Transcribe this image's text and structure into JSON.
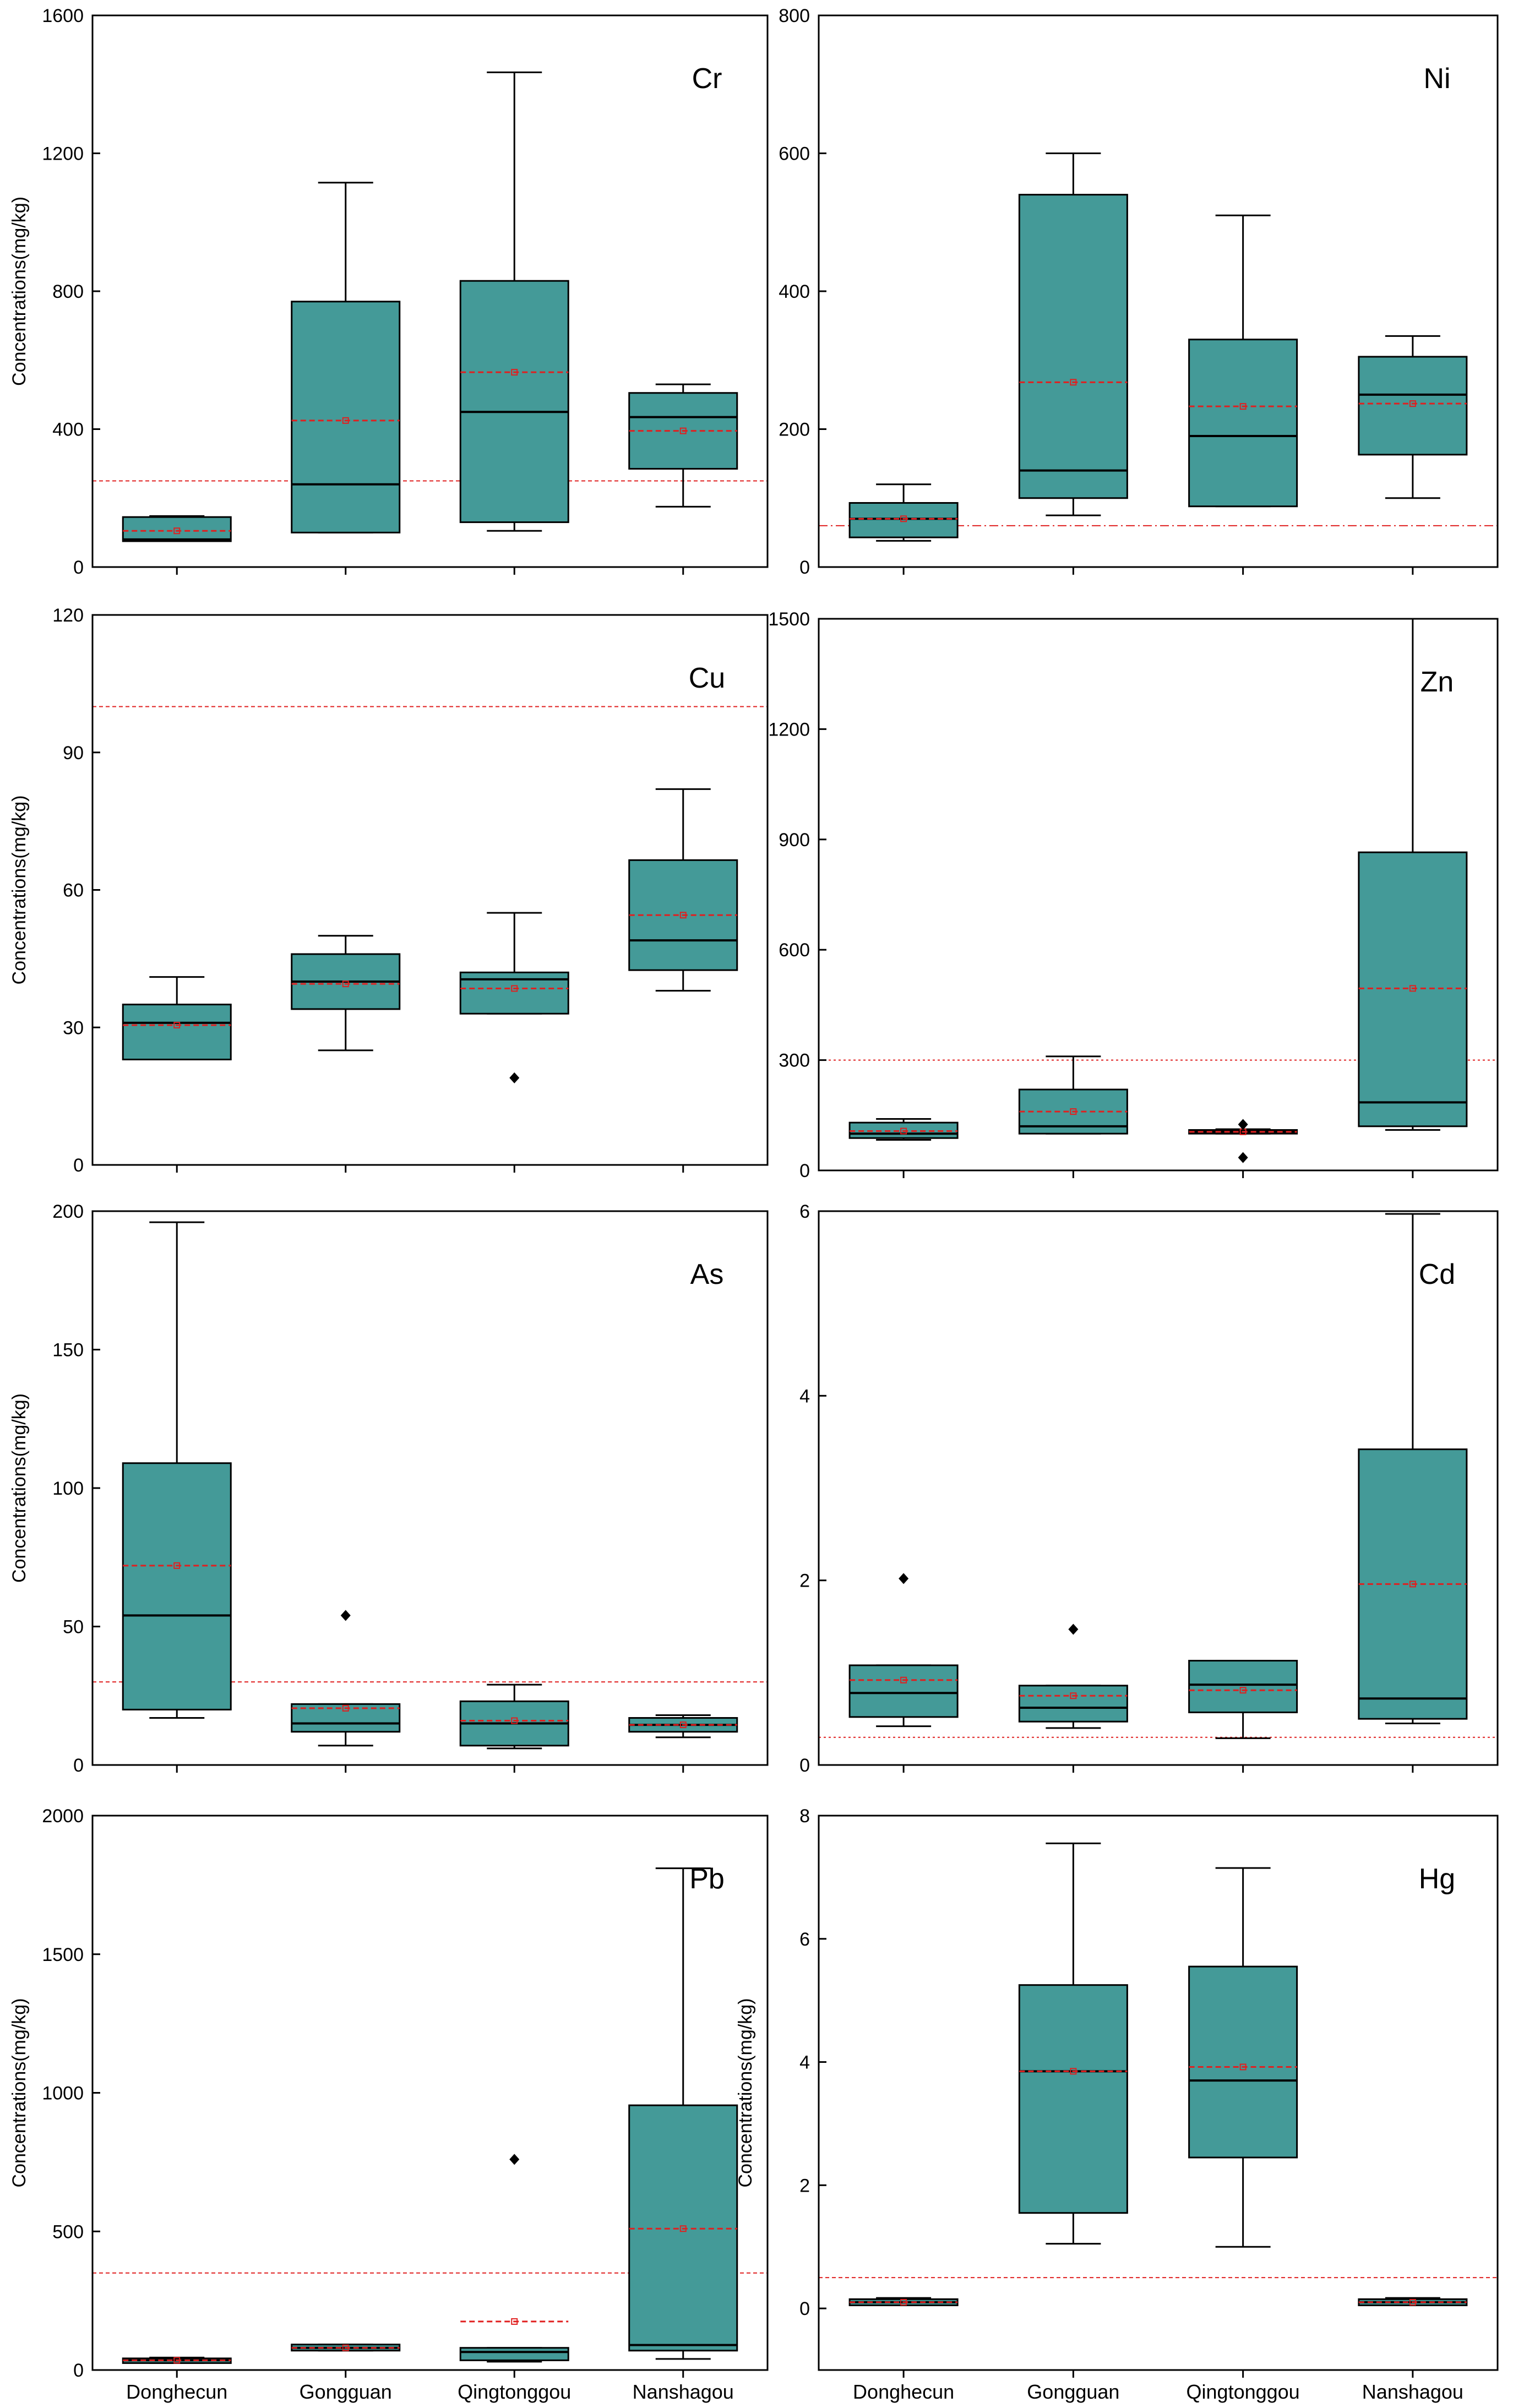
{
  "colors": {
    "box_fill": "#449A98",
    "box_edge": "#000000",
    "mean_line": "#E02020",
    "guideline": "#E02020",
    "axis": "#000000"
  },
  "chart_data": [
    {
      "type": "box",
      "label": "Cr",
      "ylabel": "Concentrations(mg/kg)",
      "ylim": [
        0,
        1600
      ],
      "yticks": [
        0,
        400,
        800,
        1200,
        1600
      ],
      "yticklabels": [
        "0",
        "400",
        "800",
        "1200",
        "1600"
      ],
      "categories": [],
      "guideline": 250,
      "guideline_style": "dashed",
      "boxes": [
        {
          "category": "Donghecun",
          "min": 75,
          "q1": 75,
          "median": 80,
          "q3": 145,
          "max": 148,
          "mean": 105,
          "outliers": []
        },
        {
          "category": "Gongguan",
          "min": 100,
          "q1": 100,
          "median": 240,
          "q3": 770,
          "max": 1115,
          "mean": 425,
          "outliers": []
        },
        {
          "category": "Qingtonggou",
          "min": 105,
          "q1": 130,
          "median": 450,
          "q3": 830,
          "max": 1435,
          "mean": 565,
          "outliers": []
        },
        {
          "category": "Nanshagou",
          "min": 175,
          "q1": 285,
          "median": 435,
          "q3": 505,
          "max": 530,
          "mean": 395,
          "outliers": []
        }
      ]
    },
    {
      "type": "box",
      "label": "Ni",
      "ylabel": "",
      "ylim": [
        0,
        800
      ],
      "yticks": [
        0,
        200,
        400,
        600,
        800
      ],
      "yticklabels": [
        "0",
        "200",
        "400",
        "600",
        "800"
      ],
      "categories": [],
      "guideline": 60,
      "guideline_style": "dashdot",
      "boxes": [
        {
          "category": "Donghecun",
          "min": 38,
          "q1": 43,
          "median": 70,
          "q3": 93,
          "max": 120,
          "mean": 70,
          "outliers": []
        },
        {
          "category": "Gongguan",
          "min": 75,
          "q1": 100,
          "median": 140,
          "q3": 540,
          "max": 600,
          "mean": 268,
          "outliers": []
        },
        {
          "category": "Qingtonggou",
          "min": 88,
          "q1": 88,
          "median": 190,
          "q3": 330,
          "max": 510,
          "mean": 233,
          "outliers": []
        },
        {
          "category": "Nanshagou",
          "min": 100,
          "q1": 163,
          "median": 250,
          "q3": 305,
          "max": 335,
          "mean": 237,
          "outliers": []
        }
      ]
    },
    {
      "type": "box",
      "label": "Cu",
      "ylabel": "Concentrations(mg/kg)",
      "ylim": [
        0,
        120
      ],
      "yticks": [
        0,
        30,
        60,
        90,
        120
      ],
      "yticklabels": [
        "0",
        "30",
        "60",
        "90",
        "120"
      ],
      "categories": [],
      "guideline": 100,
      "guideline_style": "dashed",
      "boxes": [
        {
          "category": "Donghecun",
          "min": 23,
          "q1": 23,
          "median": 31,
          "q3": 35,
          "max": 41,
          "mean": 30.5,
          "outliers": []
        },
        {
          "category": "Gongguan",
          "min": 25,
          "q1": 34,
          "median": 40,
          "q3": 46,
          "max": 50,
          "mean": 39.5,
          "outliers": []
        },
        {
          "category": "Qingtonggou",
          "min": 33,
          "q1": 33,
          "median": 40.5,
          "q3": 42,
          "max": 55,
          "mean": 38.5,
          "outliers": [
            19
          ]
        },
        {
          "category": "Nanshagou",
          "min": 38,
          "q1": 42.5,
          "median": 49,
          "q3": 66.5,
          "max": 82,
          "mean": 54.5,
          "outliers": []
        }
      ]
    },
    {
      "type": "box",
      "label": "Zn",
      "ylabel": "",
      "ylim": [
        0,
        1500
      ],
      "yticks": [
        0,
        300,
        600,
        900,
        1200,
        1500
      ],
      "yticklabels": [
        "0",
        "300",
        "600",
        "900",
        "1200",
        "1500"
      ],
      "categories": [],
      "guideline": 300,
      "guideline_style": "dotted",
      "boxes": [
        {
          "category": "Donghecun",
          "min": 83,
          "q1": 88,
          "median": 100,
          "q3": 130,
          "max": 140,
          "mean": 107,
          "outliers": []
        },
        {
          "category": "Gongguan",
          "min": 100,
          "q1": 100,
          "median": 120,
          "q3": 220,
          "max": 310,
          "mean": 160,
          "outliers": []
        },
        {
          "category": "Qingtonggou",
          "min": 100,
          "q1": 100,
          "median": 105,
          "q3": 110,
          "max": 112,
          "mean": 105,
          "outliers": [
            125,
            35
          ]
        },
        {
          "category": "Nanshagou",
          "min": 110,
          "q1": 120,
          "median": 185,
          "q3": 865,
          "max": 1500,
          "mean": 495,
          "outliers": []
        }
      ]
    },
    {
      "type": "box",
      "label": "As",
      "ylabel": "Concentrations(mg/kg)",
      "ylim": [
        0,
        200
      ],
      "yticks": [
        0,
        50,
        100,
        150,
        200
      ],
      "yticklabels": [
        "0",
        "50",
        "100",
        "150",
        "200"
      ],
      "categories": [],
      "guideline": 30,
      "guideline_style": "dashed",
      "boxes": [
        {
          "category": "Donghecun",
          "min": 17,
          "q1": 20,
          "median": 54,
          "q3": 109,
          "max": 196,
          "mean": 72,
          "outliers": []
        },
        {
          "category": "Gongguan",
          "min": 7,
          "q1": 12,
          "median": 15,
          "q3": 22,
          "max": 22,
          "mean": 20.5,
          "outliers": [
            54
          ]
        },
        {
          "category": "Qingtonggou",
          "min": 6,
          "q1": 7,
          "median": 15,
          "q3": 23,
          "max": 29,
          "mean": 16,
          "outliers": []
        },
        {
          "category": "Nanshagou",
          "min": 10,
          "q1": 12,
          "median": 14.5,
          "q3": 17,
          "max": 18,
          "mean": 14.5,
          "outliers": []
        }
      ]
    },
    {
      "type": "box",
      "label": "Cd",
      "ylabel": "",
      "ylim": [
        0,
        6
      ],
      "yticks": [
        0,
        2,
        4,
        6
      ],
      "yticklabels": [
        "0",
        "2",
        "4",
        "6"
      ],
      "categories": [],
      "guideline": 0.3,
      "guideline_style": "dotted",
      "boxes": [
        {
          "category": "Donghecun",
          "min": 0.42,
          "q1": 0.52,
          "median": 0.78,
          "q3": 1.08,
          "max": 1.08,
          "mean": 0.92,
          "outliers": [
            2.02
          ]
        },
        {
          "category": "Gongguan",
          "min": 0.4,
          "q1": 0.47,
          "median": 0.62,
          "q3": 0.86,
          "max": 0.86,
          "mean": 0.75,
          "outliers": [
            1.47
          ]
        },
        {
          "category": "Qingtonggou",
          "min": 0.29,
          "q1": 0.57,
          "median": 0.87,
          "q3": 1.13,
          "max": 1.13,
          "mean": 0.81,
          "outliers": []
        },
        {
          "category": "Nanshagou",
          "min": 0.45,
          "q1": 0.5,
          "median": 0.72,
          "q3": 3.42,
          "max": 5.97,
          "mean": 1.96,
          "outliers": []
        }
      ]
    },
    {
      "type": "box",
      "label": "Pb",
      "ylabel": "Concentrations(mg/kg)",
      "ylim": [
        0,
        2000
      ],
      "yticks": [
        0,
        500,
        1000,
        1500,
        2000
      ],
      "yticklabels": [
        "0",
        "500",
        "1000",
        "1500",
        "2000"
      ],
      "categories": [
        "Donghecun",
        "Gongguan",
        "Qingtonggou",
        "Nanshagou"
      ],
      "guideline": 350,
      "guideline_style": "dashed",
      "boxes": [
        {
          "category": "Donghecun",
          "min": 25,
          "q1": 25,
          "median": 35,
          "q3": 42,
          "max": 45,
          "mean": 35,
          "outliers": []
        },
        {
          "category": "Gongguan",
          "min": 70,
          "q1": 70,
          "median": 80,
          "q3": 92,
          "max": 92,
          "mean": 80,
          "outliers": []
        },
        {
          "category": "Qingtonggou",
          "min": 30,
          "q1": 35,
          "median": 65,
          "q3": 80,
          "max": 80,
          "mean": 175,
          "outliers": [
            760
          ]
        },
        {
          "category": "Nanshagou",
          "min": 40,
          "q1": 70,
          "median": 90,
          "q3": 955,
          "max": 1810,
          "mean": 510,
          "outliers": []
        }
      ]
    },
    {
      "type": "box",
      "label": "Hg",
      "ylabel": "Concentrations(mg/kg)",
      "ylim": [
        -1,
        8
      ],
      "yticks": [
        0,
        2,
        4,
        6,
        8
      ],
      "yticklabels": [
        "0",
        "2",
        "4",
        "6",
        "8"
      ],
      "categories": [
        "Donghecun",
        "Gongguan",
        "Qingtonggou",
        "Nanshagou"
      ],
      "guideline": 0.5,
      "guideline_style": "dashed",
      "boxes": [
        {
          "category": "Donghecun",
          "min": 0.05,
          "q1": 0.05,
          "median": 0.1,
          "q3": 0.15,
          "max": 0.17,
          "mean": 0.1,
          "outliers": []
        },
        {
          "category": "Gongguan",
          "min": 1.05,
          "q1": 1.55,
          "median": 3.85,
          "q3": 5.25,
          "max": 7.55,
          "mean": 3.85,
          "outliers": []
        },
        {
          "category": "Qingtonggou",
          "min": 1.0,
          "q1": 2.45,
          "median": 3.7,
          "q3": 5.55,
          "max": 7.15,
          "mean": 3.92,
          "outliers": []
        },
        {
          "category": "Nanshagou",
          "min": 0.05,
          "q1": 0.05,
          "median": 0.1,
          "q3": 0.15,
          "max": 0.17,
          "mean": 0.1,
          "outliers": []
        }
      ]
    }
  ]
}
